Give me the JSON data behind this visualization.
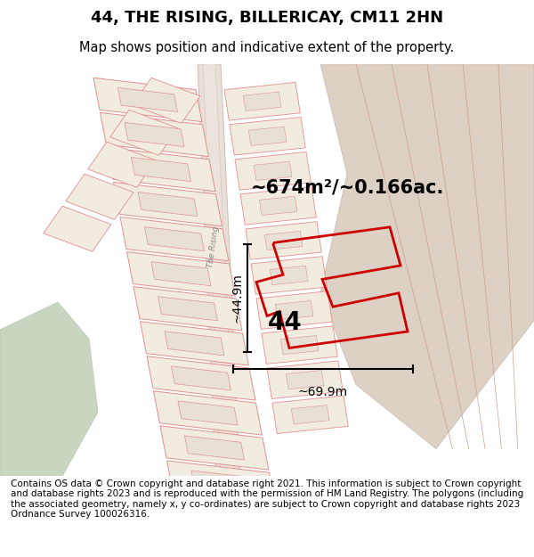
{
  "title": "44, THE RISING, BILLERICAY, CM11 2HN",
  "subtitle": "Map shows position and indicative extent of the property.",
  "footer": "Contains OS data © Crown copyright and database right 2021. This information is subject to Crown copyright and database rights 2023 and is reproduced with the permission of HM Land Registry. The polygons (including the associated geometry, namely x, y co-ordinates) are subject to Crown copyright and database rights 2023 Ordnance Survey 100026316.",
  "area_label": "~674m²/~0.166ac.",
  "width_label": "~69.9m",
  "height_label": "~44.9m",
  "plot_number": "44",
  "map_bg": "#f0ebe3",
  "plot_outline_color": "#cc0000",
  "green_area_color": "#c8d5c0",
  "brown_area_color": "#ddd0c4",
  "road_fill": "#e4dcd2",
  "title_fontsize": 13,
  "subtitle_fontsize": 10.5,
  "footer_fontsize": 7.5
}
